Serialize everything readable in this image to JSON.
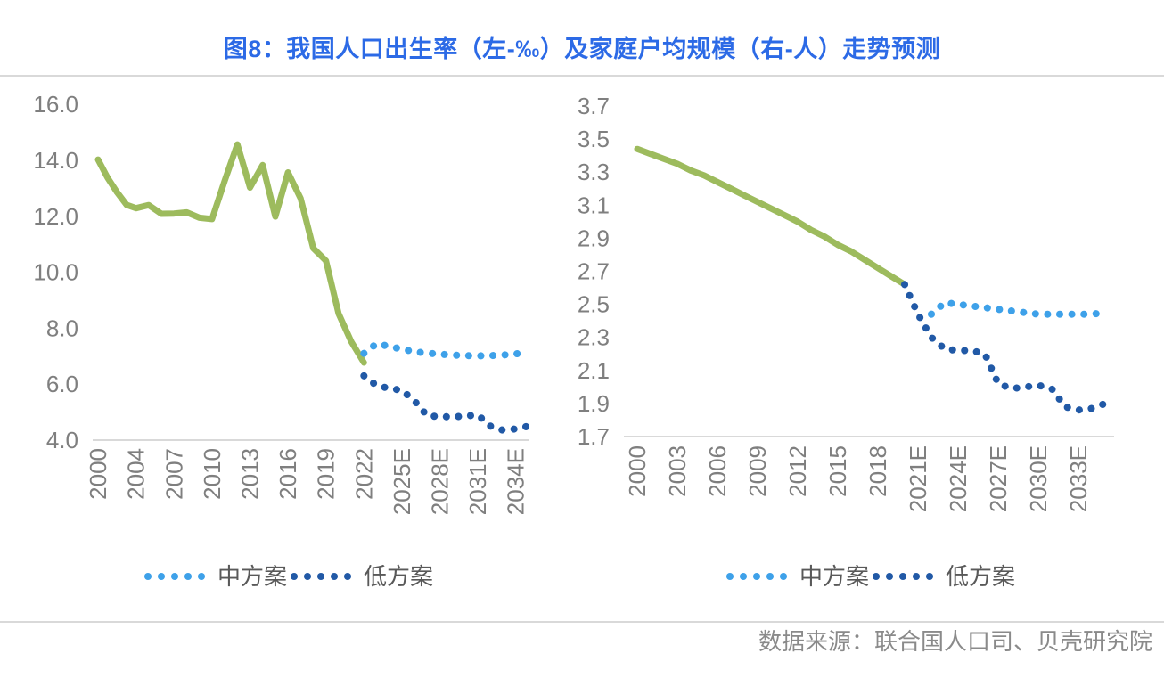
{
  "title": "图8：我国人口出生率（左-‰）及家庭户均规模（右-人）走势预测",
  "source": "数据来源：联合国人口司、贝壳研究院",
  "legend": {
    "medium": "中方案",
    "low": "低方案"
  },
  "colors": {
    "title": "#2c6ae6",
    "actual_line": "#9dbb5d",
    "medium_scenario": "#3ea1e9",
    "low_scenario": "#2159a6",
    "axis_text": "#7f7f7f",
    "legend_text": "#595959",
    "divider": "#d9d9d9",
    "source_text": "#8a8a8a"
  },
  "chart_data": [
    {
      "type": "line",
      "panel": "left",
      "title": "我国人口出生率（左-‰）",
      "ylim": [
        4.0,
        16.0
      ],
      "ytick_labels": [
        "16.0",
        "14.0",
        "12.0",
        "10.0",
        "8.0",
        "6.0",
        "4.0"
      ],
      "xtick_labels": [
        "2000",
        "2004",
        "2007",
        "2010",
        "2013",
        "2016",
        "2019",
        "2022",
        "2025E",
        "2028E",
        "2031E",
        "2034E"
      ],
      "grid": false,
      "legend_position": "bottom",
      "series": [
        {
          "name": "actual",
          "style": "solid",
          "color_key": "actual_line",
          "start_year": 2000,
          "values": [
            14.03,
            13.38,
            12.86,
            12.41,
            12.29,
            12.4,
            12.09,
            12.1,
            12.14,
            11.95,
            11.9,
            13.27,
            14.57,
            13.03,
            13.83,
            11.99,
            13.57,
            12.64,
            10.86,
            10.41,
            8.52,
            7.52,
            6.77
          ]
        },
        {
          "name": "中方案",
          "style": "dotted",
          "color_key": "medium_scenario",
          "start_year": 2022,
          "values": [
            7.1,
            7.45,
            7.35,
            7.25,
            7.16,
            7.11,
            7.07,
            7.04,
            7.02,
            7.01,
            7.02,
            7.04,
            7.08,
            7.16
          ]
        },
        {
          "name": "低方案",
          "style": "dotted",
          "color_key": "low_scenario",
          "start_year": 2022,
          "values": [
            6.3,
            5.95,
            5.85,
            5.78,
            5.4,
            4.87,
            4.84,
            4.83,
            4.86,
            4.9,
            4.5,
            4.35,
            4.4,
            4.5
          ]
        }
      ]
    },
    {
      "type": "line",
      "panel": "right",
      "title": "家庭户均规模（右-人）",
      "ylim": [
        1.7,
        3.7
      ],
      "ytick_labels": [
        "3.7",
        "3.5",
        "3.3",
        "3.1",
        "2.9",
        "2.7",
        "2.5",
        "2.3",
        "2.1",
        "1.9",
        "1.7"
      ],
      "xtick_labels": [
        "2000",
        "2003",
        "2006",
        "2009",
        "2012",
        "2015",
        "2018",
        "2021E",
        "2024E",
        "2027E",
        "2030E",
        "2033E"
      ],
      "grid": false,
      "legend_position": "bottom",
      "series": [
        {
          "name": "actual",
          "style": "solid",
          "color_key": "actual_line",
          "start_year": 2000,
          "values": [
            3.44,
            3.41,
            3.38,
            3.35,
            3.31,
            3.28,
            3.24,
            3.2,
            3.16,
            3.12,
            3.08,
            3.04,
            3.0,
            2.95,
            2.91,
            2.86,
            2.82,
            2.77,
            2.72,
            2.67,
            2.62
          ]
        },
        {
          "name": "中方案",
          "style": "dotted",
          "color_key": "medium_scenario",
          "start_year": 2022,
          "values": [
            2.44,
            2.51,
            2.5,
            2.49,
            2.48,
            2.47,
            2.46,
            2.45,
            2.44,
            2.44,
            2.44,
            2.44,
            2.44,
            2.45
          ]
        },
        {
          "name": "低方案",
          "style": "dotted",
          "color_key": "low_scenario",
          "start_year": 2020,
          "values": [
            2.62,
            2.44,
            2.3,
            2.23,
            2.22,
            2.22,
            2.2,
            2.02,
            1.99,
            2.0,
            2.01,
            1.99,
            1.88,
            1.86,
            1.87,
            1.9
          ]
        }
      ]
    }
  ]
}
